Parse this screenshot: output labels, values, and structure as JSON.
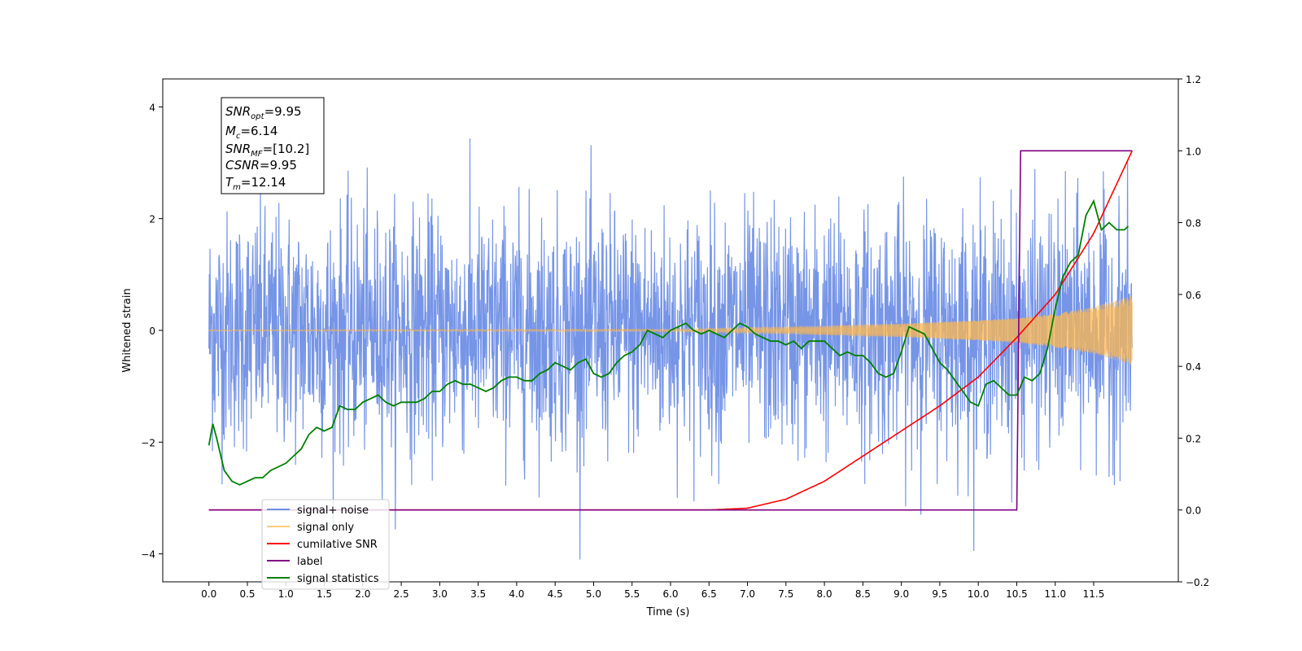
{
  "chart_data": {
    "type": "line",
    "xlabel": "Time (s)",
    "ylabel": "Whitened strain",
    "xlim": [
      -0.6,
      12.6
    ],
    "ylim": [
      -4.5,
      4.5
    ],
    "y2lim": [
      -0.2,
      1.2
    ],
    "x_ticks": [
      "0.0",
      "0.5",
      "1.0",
      "1.5",
      "2.0",
      "2.5",
      "3.0",
      "3.5",
      "4.0",
      "4.5",
      "5.0",
      "5.5",
      "6.0",
      "6.5",
      "7.0",
      "7.5",
      "8.0",
      "8.5",
      "9.0",
      "9.5",
      "10.0",
      "10.5",
      "11.0",
      "11.5"
    ],
    "y_ticks": [
      -4,
      -2,
      0,
      2,
      4
    ],
    "y2_ticks": [
      "−0.2",
      "0.0",
      "0.2",
      "0.4",
      "0.6",
      "0.8",
      "1.0",
      "1.2"
    ],
    "legend_position": "lower-left",
    "annotation": {
      "snr_opt": {
        "symbol": "SNR",
        "sub": "opt",
        "value": "=9.95"
      },
      "mc": {
        "symbol": "M",
        "sub": "c",
        "value": "=6.14"
      },
      "snr_mf": {
        "symbol": "SNR",
        "sub": "MF",
        "value": "=[10.2]"
      },
      "csnr": {
        "symbol": "CSNR",
        "sub": "",
        "value": "=9.95"
      },
      "tm": {
        "symbol": "T",
        "sub": "m",
        "value": "=12.14"
      }
    },
    "series": [
      {
        "name": "signal+ noise",
        "color": "#6f8fe6",
        "axis": "left",
        "description_values": "white noise, std ~1.1, peaks up to ~4.1"
      },
      {
        "name": "signal only",
        "color": "#ffb84d",
        "axis": "left",
        "amplitude_envelope": {
          "x": [
            0,
            6.0,
            7.5,
            9.0,
            10.0,
            10.5,
            11.0,
            11.5,
            12.0
          ],
          "y": [
            0.01,
            0.02,
            0.06,
            0.12,
            0.18,
            0.22,
            0.3,
            0.42,
            0.62
          ]
        }
      },
      {
        "name": "cumilative SNR",
        "color": "#ff0000",
        "axis": "right",
        "x": [
          0,
          6.5,
          7.0,
          7.5,
          8.0,
          8.5,
          9.0,
          9.5,
          10.0,
          10.5,
          11.0,
          11.5,
          12.0
        ],
        "y": [
          0.0,
          0.0,
          0.005,
          0.03,
          0.08,
          0.15,
          0.22,
          0.29,
          0.37,
          0.48,
          0.6,
          0.77,
          1.0
        ]
      },
      {
        "name": "label",
        "color": "#800080",
        "axis": "right",
        "x": [
          0,
          10.5,
          10.55,
          12.0
        ],
        "y": [
          0.0,
          0.0,
          1.0,
          1.0
        ]
      },
      {
        "name": "signal statistics",
        "color": "#008000",
        "axis": "right",
        "x": [
          0.0,
          0.05,
          0.1,
          0.2,
          0.3,
          0.4,
          0.5,
          0.6,
          0.7,
          0.8,
          1.0,
          1.1,
          1.2,
          1.3,
          1.4,
          1.5,
          1.6,
          1.7,
          1.8,
          1.9,
          2.0,
          2.1,
          2.2,
          2.3,
          2.4,
          2.5,
          2.6,
          2.7,
          2.8,
          2.9,
          3.0,
          3.1,
          3.2,
          3.3,
          3.4,
          3.5,
          3.6,
          3.7,
          3.8,
          3.9,
          4.0,
          4.1,
          4.2,
          4.3,
          4.4,
          4.5,
          4.6,
          4.7,
          4.8,
          4.9,
          5.0,
          5.1,
          5.2,
          5.3,
          5.4,
          5.5,
          5.6,
          5.7,
          5.8,
          5.9,
          6.0,
          6.1,
          6.2,
          6.3,
          6.4,
          6.5,
          6.6,
          6.7,
          6.8,
          6.9,
          7.0,
          7.1,
          7.2,
          7.3,
          7.4,
          7.5,
          7.6,
          7.7,
          7.8,
          7.9,
          8.0,
          8.1,
          8.2,
          8.3,
          8.4,
          8.5,
          8.6,
          8.7,
          8.8,
          8.9,
          9.0,
          9.1,
          9.2,
          9.3,
          9.4,
          9.5,
          9.6,
          9.7,
          9.8,
          9.9,
          10.0,
          10.1,
          10.2,
          10.3,
          10.4,
          10.5,
          10.6,
          10.7,
          10.8,
          10.9,
          11.0,
          11.1,
          11.2,
          11.3,
          11.4,
          11.5,
          11.6,
          11.7,
          11.8,
          11.9,
          11.95
        ],
        "y": [
          0.18,
          0.24,
          0.2,
          0.11,
          0.08,
          0.07,
          0.08,
          0.09,
          0.09,
          0.11,
          0.13,
          0.15,
          0.17,
          0.21,
          0.23,
          0.22,
          0.23,
          0.29,
          0.28,
          0.28,
          0.3,
          0.31,
          0.32,
          0.3,
          0.29,
          0.3,
          0.3,
          0.3,
          0.31,
          0.33,
          0.33,
          0.35,
          0.36,
          0.35,
          0.35,
          0.34,
          0.33,
          0.34,
          0.36,
          0.37,
          0.37,
          0.36,
          0.36,
          0.38,
          0.39,
          0.41,
          0.4,
          0.39,
          0.41,
          0.42,
          0.38,
          0.37,
          0.38,
          0.41,
          0.43,
          0.44,
          0.46,
          0.5,
          0.49,
          0.48,
          0.5,
          0.51,
          0.52,
          0.5,
          0.49,
          0.5,
          0.49,
          0.48,
          0.5,
          0.52,
          0.51,
          0.49,
          0.48,
          0.47,
          0.47,
          0.46,
          0.47,
          0.45,
          0.47,
          0.47,
          0.47,
          0.45,
          0.43,
          0.44,
          0.43,
          0.43,
          0.41,
          0.38,
          0.37,
          0.38,
          0.44,
          0.51,
          0.5,
          0.49,
          0.45,
          0.41,
          0.39,
          0.36,
          0.33,
          0.3,
          0.29,
          0.35,
          0.36,
          0.34,
          0.32,
          0.32,
          0.37,
          0.36,
          0.38,
          0.45,
          0.56,
          0.65,
          0.69,
          0.71,
          0.82,
          0.86,
          0.78,
          0.8,
          0.78,
          0.78,
          0.79
        ]
      }
    ]
  }
}
